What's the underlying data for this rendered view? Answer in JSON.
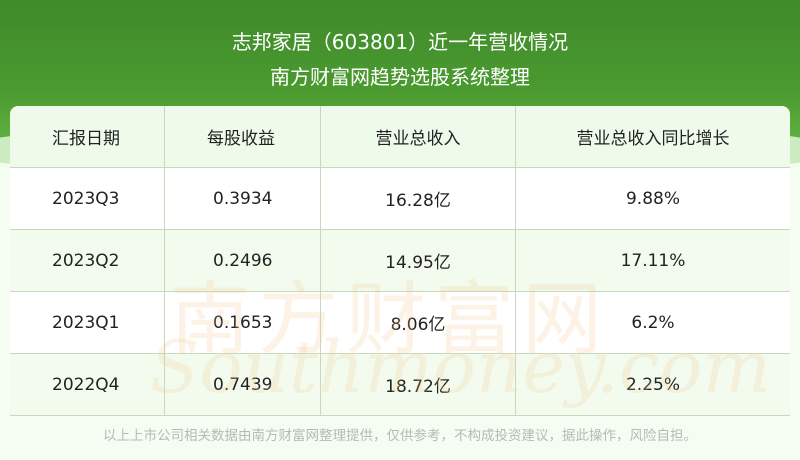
{
  "header": {
    "title": "志邦家居（603801）近一年营收情况",
    "subtitle": "南方财富网趋势选股系统整理"
  },
  "watermark": {
    "cn": "南方财富网",
    "en": "Southmoney.com"
  },
  "chart_data": {
    "type": "table",
    "columns": [
      "汇报日期",
      "每股收益",
      "营业总收入",
      "营业总收入同比增长"
    ],
    "rows": [
      [
        "2023Q3",
        "0.3934",
        "16.28亿",
        "9.88%"
      ],
      [
        "2023Q2",
        "0.2496",
        "14.95亿",
        "17.11%"
      ],
      [
        "2023Q1",
        "0.1653",
        "8.06亿",
        "6.2%"
      ],
      [
        "2022Q4",
        "0.7439",
        "18.72亿",
        "2.25%"
      ]
    ]
  },
  "footer": "以上上市公司相关数据由南方财富网整理提供，仅供参考，不构成投资建议，据此操作，风险自担。",
  "colors": {
    "banner": "#4a9a30",
    "header_row": "#eefbea",
    "alt_row": "#f3fbef"
  }
}
